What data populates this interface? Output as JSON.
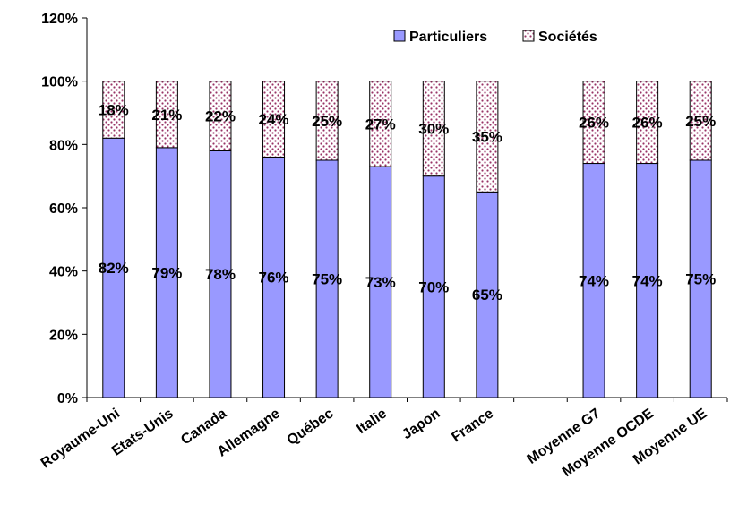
{
  "chart_data": {
    "type": "bar",
    "stacked": true,
    "percent": true,
    "categories": [
      "Royaume-Uni",
      "Etats-Unis",
      "Canada",
      "Allemagne",
      "Québec",
      "Italie",
      "Japon",
      "France",
      "",
      "Moyenne G7",
      "Moyenne OCDE",
      "Moyenne UE"
    ],
    "series": [
      {
        "name": "Particuliers",
        "color": "#9999ff",
        "values": [
          82,
          79,
          78,
          76,
          75,
          73,
          70,
          65,
          null,
          74,
          74,
          75
        ],
        "labels": [
          "82%",
          "79%",
          "78%",
          "76%",
          "75%",
          "73%",
          "70%",
          "65%",
          "",
          "74%",
          "74%",
          "75%"
        ]
      },
      {
        "name": "Sociétés",
        "color": "#993366",
        "pattern": "dotted",
        "values": [
          18,
          21,
          22,
          24,
          25,
          27,
          30,
          35,
          null,
          26,
          26,
          25
        ],
        "labels": [
          "18%",
          "21%",
          "22%",
          "24%",
          "25%",
          "27%",
          "30%",
          "35%",
          "",
          "26%",
          "26%",
          "25%"
        ]
      }
    ],
    "yticks": [
      "0%",
      "20%",
      "40%",
      "60%",
      "80%",
      "100%",
      "120%"
    ],
    "ylim": [
      0,
      120
    ],
    "title": "",
    "xlabel": "",
    "ylabel": "",
    "legend_position": "top-right",
    "grid": false
  }
}
